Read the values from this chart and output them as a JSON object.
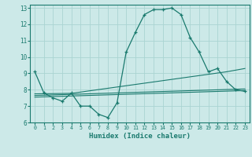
{
  "title": "",
  "xlabel": "Humidex (Indice chaleur)",
  "bg_color": "#cce9e8",
  "grid_color": "#aad4d2",
  "line_color": "#1a7a6e",
  "xlim": [
    -0.5,
    23.5
  ],
  "ylim": [
    6,
    13.2
  ],
  "xticks": [
    0,
    1,
    2,
    3,
    4,
    5,
    6,
    7,
    8,
    9,
    10,
    11,
    12,
    13,
    14,
    15,
    16,
    17,
    18,
    19,
    20,
    21,
    22,
    23
  ],
  "yticks": [
    6,
    7,
    8,
    9,
    10,
    11,
    12,
    13
  ],
  "series1_x": [
    0,
    1,
    2,
    3,
    4,
    5,
    6,
    7,
    8,
    9,
    10,
    11,
    12,
    13,
    14,
    15,
    16,
    17,
    18,
    19,
    20,
    21,
    22,
    23
  ],
  "series1_y": [
    9.1,
    7.8,
    7.5,
    7.3,
    7.8,
    7.0,
    7.0,
    6.5,
    6.3,
    7.2,
    10.3,
    11.5,
    12.6,
    12.9,
    12.9,
    13.0,
    12.6,
    11.2,
    10.3,
    9.1,
    9.3,
    8.5,
    8.0,
    7.9
  ],
  "series2_x": [
    0,
    4,
    21,
    23
  ],
  "series2_y": [
    7.75,
    7.78,
    9.1,
    9.3
  ],
  "series3_x": [
    0,
    23
  ],
  "series3_y": [
    7.55,
    7.95
  ],
  "series4_x": [
    0,
    23
  ],
  "series4_y": [
    7.65,
    8.05
  ]
}
